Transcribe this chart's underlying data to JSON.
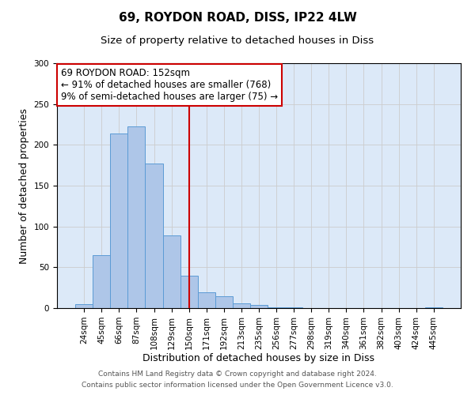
{
  "title": "69, ROYDON ROAD, DISS, IP22 4LW",
  "subtitle": "Size of property relative to detached houses in Diss",
  "xlabel": "Distribution of detached houses by size in Diss",
  "ylabel": "Number of detached properties",
  "bar_labels": [
    "24sqm",
    "45sqm",
    "66sqm",
    "87sqm",
    "108sqm",
    "129sqm",
    "150sqm",
    "171sqm",
    "192sqm",
    "213sqm",
    "235sqm",
    "256sqm",
    "277sqm",
    "298sqm",
    "319sqm",
    "340sqm",
    "361sqm",
    "382sqm",
    "403sqm",
    "424sqm",
    "445sqm"
  ],
  "bar_values": [
    5,
    65,
    214,
    223,
    177,
    89,
    40,
    19,
    15,
    6,
    4,
    1,
    1,
    0,
    0,
    0,
    0,
    0,
    0,
    0,
    1
  ],
  "bar_color": "#aec6e8",
  "bar_edge_color": "#5b9bd5",
  "vline_x": 6,
  "vline_color": "#cc0000",
  "annotation_line1": "69 ROYDON ROAD: 152sqm",
  "annotation_line2": "← 91% of detached houses are smaller (768)",
  "annotation_line3": "9% of semi-detached houses are larger (75) →",
  "annotation_box_color": "#ffffff",
  "annotation_box_edge": "#cc0000",
  "ylim": [
    0,
    300
  ],
  "yticks": [
    0,
    50,
    100,
    150,
    200,
    250,
    300
  ],
  "grid_color": "#cccccc",
  "bg_color": "#dce9f8",
  "footer_line1": "Contains HM Land Registry data © Crown copyright and database right 2024.",
  "footer_line2": "Contains public sector information licensed under the Open Government Licence v3.0.",
  "title_fontsize": 11,
  "subtitle_fontsize": 9.5,
  "axis_label_fontsize": 9,
  "tick_fontsize": 7.5,
  "annotation_fontsize": 8.5
}
